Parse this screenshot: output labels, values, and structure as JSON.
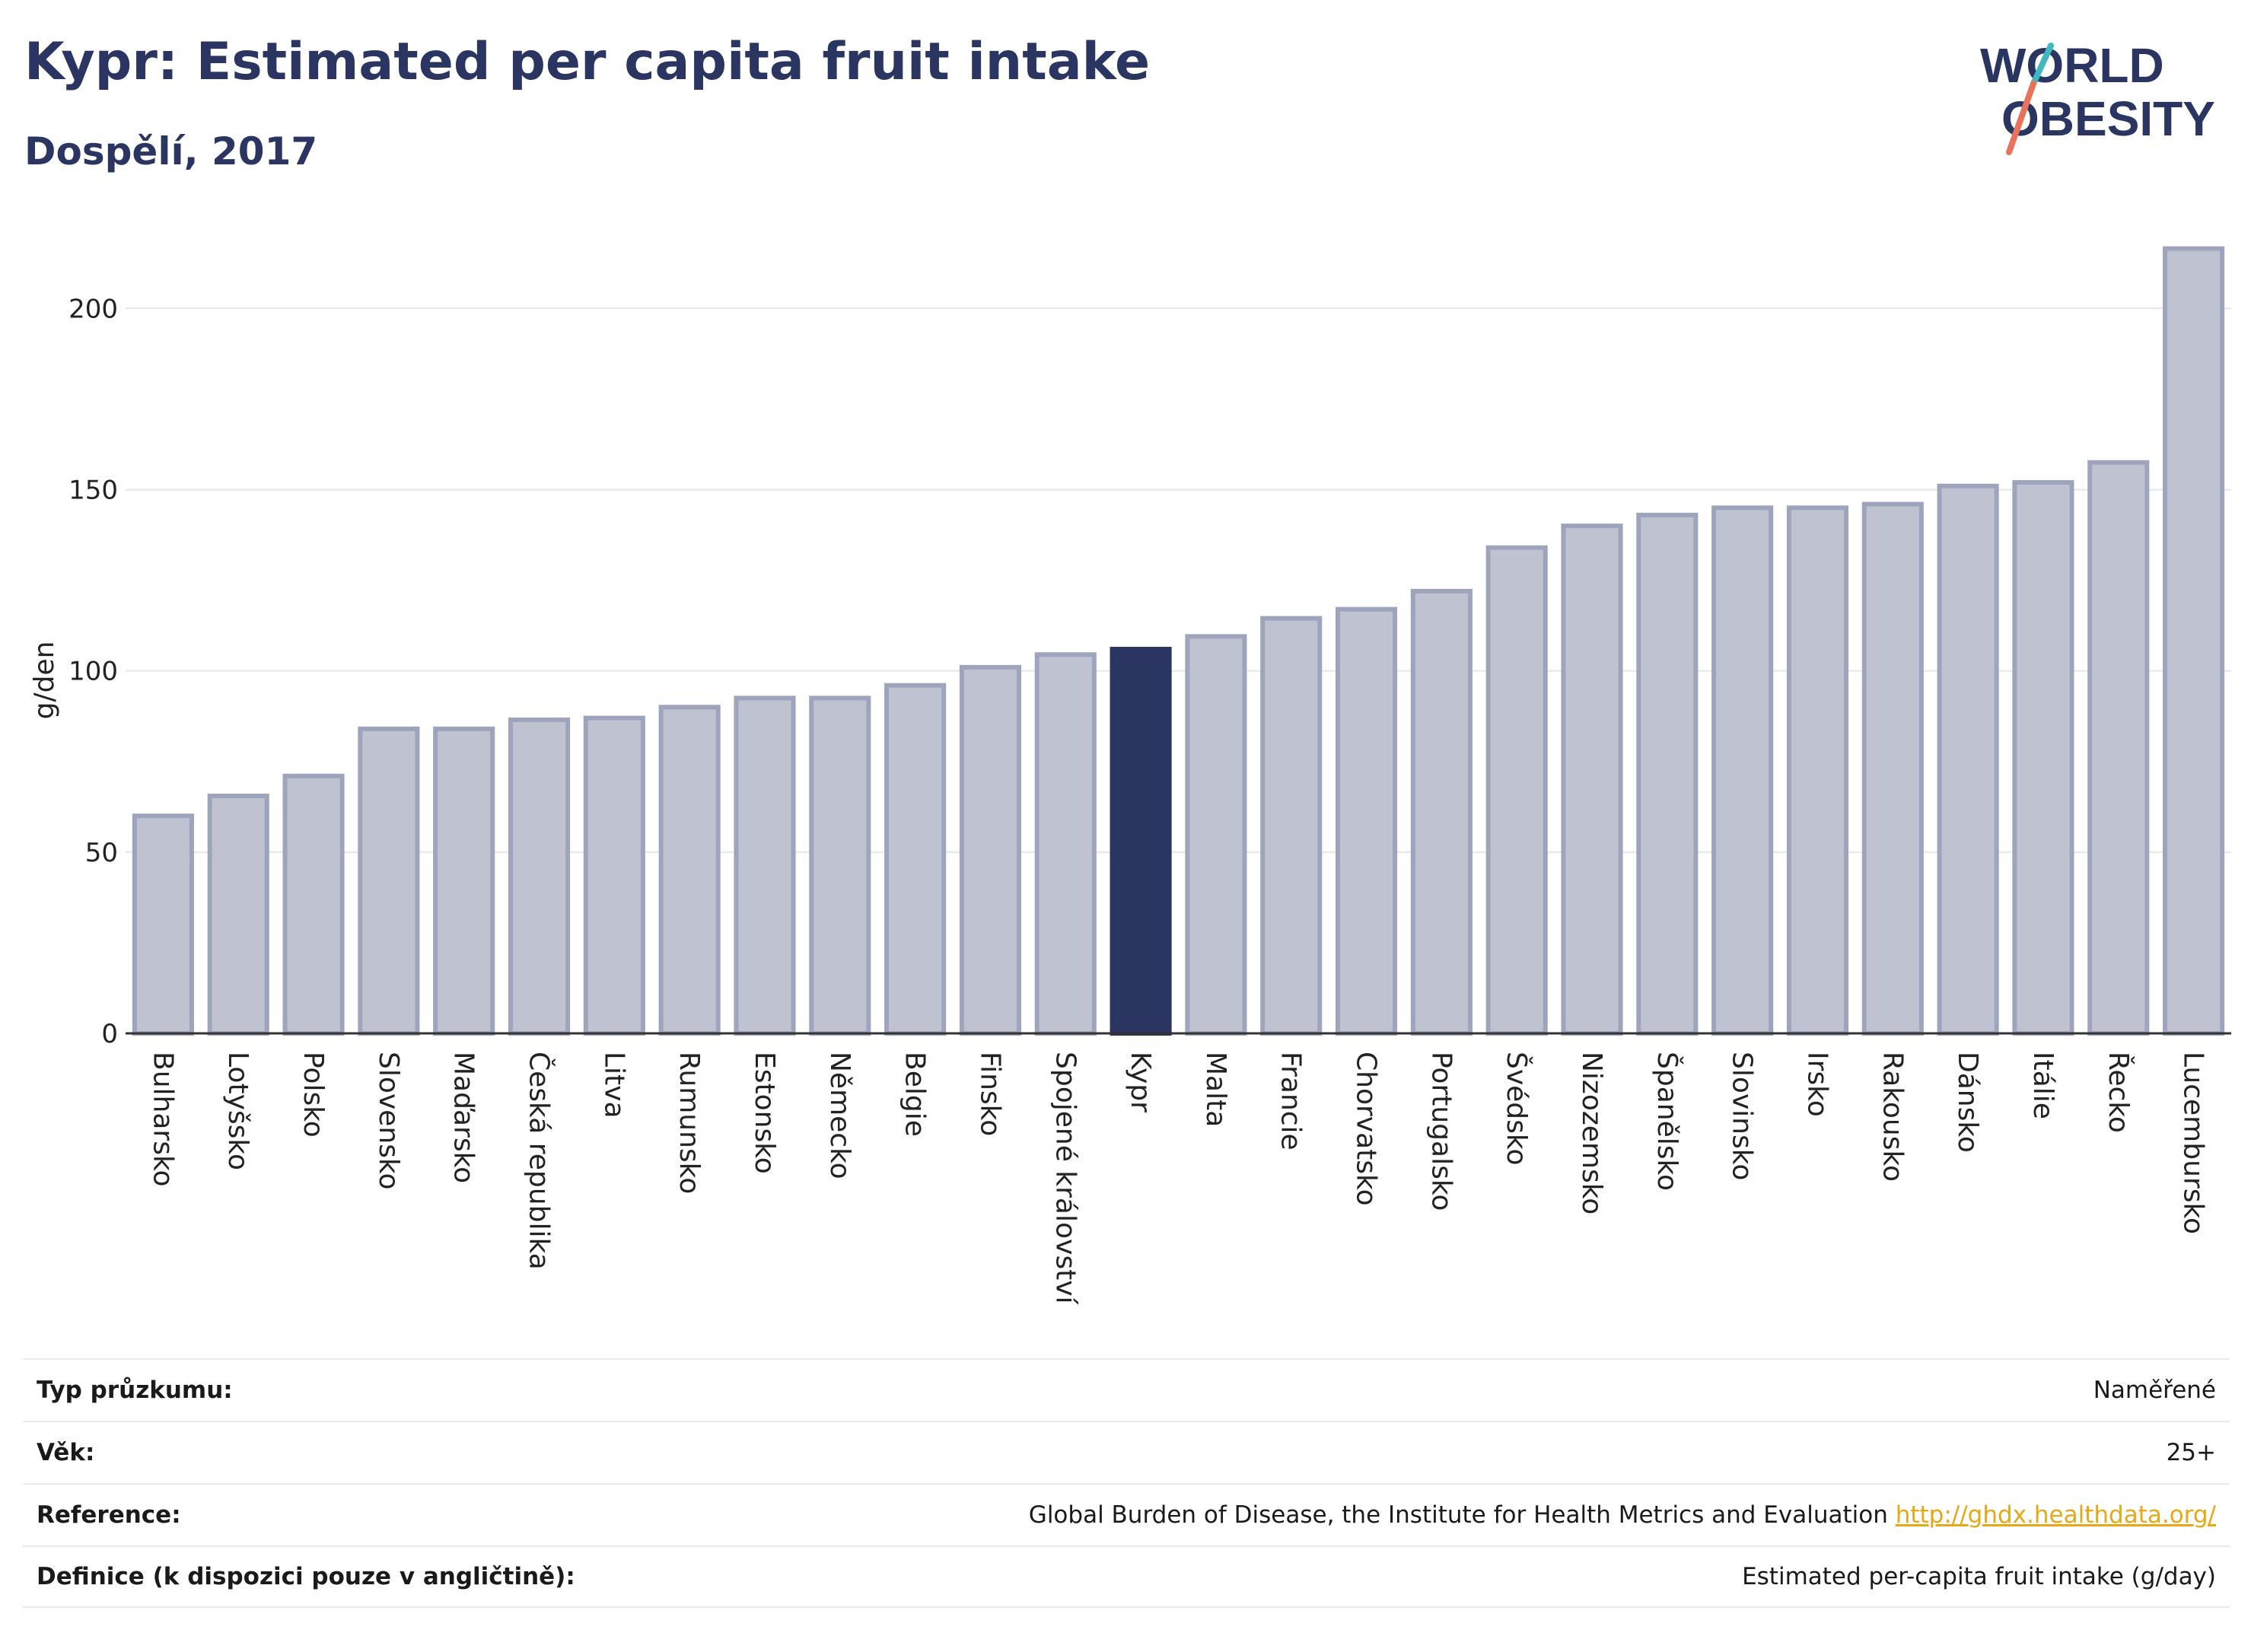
{
  "header": {
    "title": "Kypr: Estimated per capita fruit intake",
    "subtitle": "Dospělí, 2017",
    "logo_line1": "WORLD",
    "logo_line2": "OBESITY"
  },
  "colors": {
    "title": "#2b3561",
    "bar_default": "#bfc3d1",
    "bar_default_stroke": "#9ea4bb",
    "bar_highlight": "#2b3561",
    "logo_slash_teal": "#3fb8c0",
    "logo_slash_coral": "#e8735a",
    "link": "#e6a817"
  },
  "chart_data": {
    "type": "bar",
    "ylabel": "g/den",
    "xlabel": "",
    "ylim": [
      0,
      220
    ],
    "yticks": [
      0,
      50,
      100,
      150,
      200
    ],
    "grid": true,
    "highlight": "Kypr",
    "categories": [
      "Bulharsko",
      "Lotyšsko",
      "Polsko",
      "Slovensko",
      "Maďarsko",
      "Česká republika",
      "Litva",
      "Rumunsko",
      "Estonsko",
      "Německo",
      "Belgie",
      "Finsko",
      "Spojené království",
      "Kypr",
      "Malta",
      "Francie",
      "Chorvatsko",
      "Portugalsko",
      "Švédsko",
      "Nizozemsko",
      "Španělsko",
      "Slovinsko",
      "Irsko",
      "Rakousko",
      "Dánsko",
      "Itálie",
      "Řecko",
      "Lucembursko"
    ],
    "values": [
      60,
      65.5,
      71,
      84,
      84,
      86.5,
      87,
      90,
      92.5,
      92.5,
      96,
      101,
      104.5,
      106,
      109.5,
      114.5,
      117,
      122,
      134,
      140,
      143,
      145,
      145,
      146,
      151,
      152,
      157.5,
      216.5
    ]
  },
  "info": {
    "survey_label": "Typ průzkumu:",
    "survey_value": "Naměřené",
    "age_label": "Věk:",
    "age_value": "25+",
    "reference_label": "Reference:",
    "reference_value": "Global Burden of Disease, the Institute for Health Metrics and Evaluation",
    "reference_link": "http://ghdx.healthdata.org/",
    "definition_label": "Definice (k dispozici pouze v angličtině):",
    "definition_value": "Estimated per-capita fruit intake (g/day)"
  }
}
